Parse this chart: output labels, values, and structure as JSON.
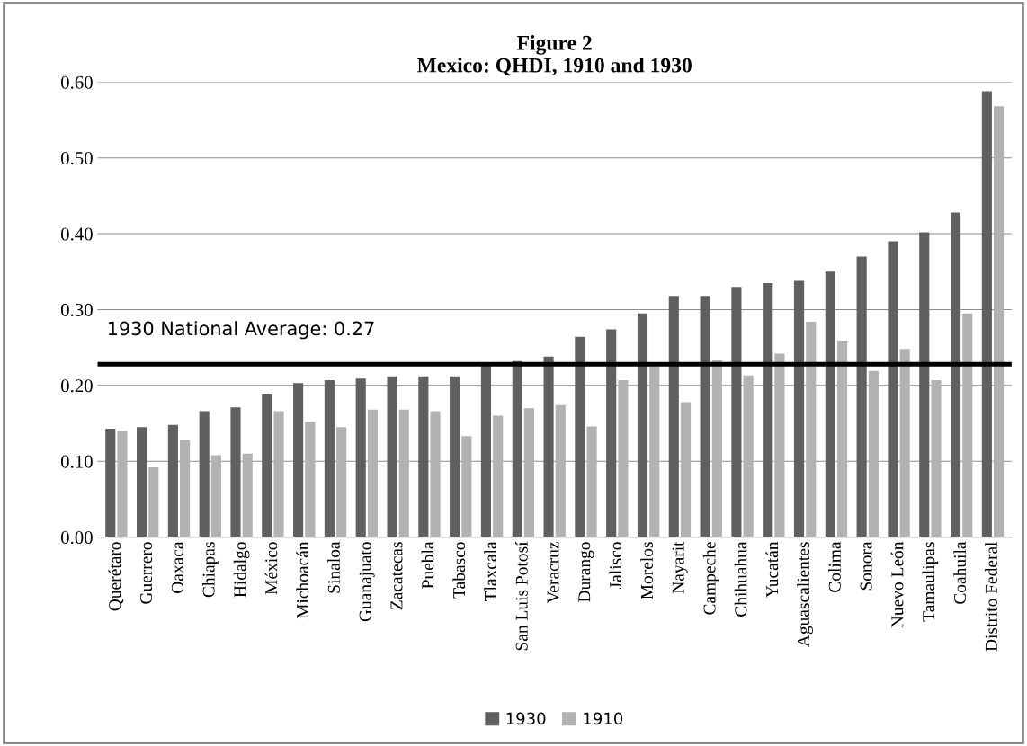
{
  "chart_data": {
    "type": "bar",
    "title": "Figure 2\nMexico: QHDI, 1910 and 1930",
    "categories": [
      "Querétaro",
      "Guerrero",
      "Oaxaca",
      "Chiapas",
      "Hidalgo",
      "México",
      "Michoacán",
      "Sinaloa",
      "Guanajuato",
      "Zacatecas",
      "Puebla",
      "Tabasco",
      "Tlaxcala",
      "San Luis Potosí",
      "Veracruz",
      "Durango",
      "Jalisco",
      "Morelos",
      "Nayarit",
      "Campeche",
      "Chihuahua",
      "Yucatán",
      "Aguascalientes",
      "Colima",
      "Sonora",
      "Nuevo León",
      "Tamaulipas",
      "Coahuila",
      "Distrito Federal"
    ],
    "series": [
      {
        "name": "1930",
        "color": "#606060",
        "values": [
          0.143,
          0.145,
          0.148,
          0.166,
          0.171,
          0.189,
          0.203,
          0.207,
          0.209,
          0.212,
          0.212,
          0.212,
          0.228,
          0.232,
          0.238,
          0.264,
          0.274,
          0.295,
          0.318,
          0.318,
          0.33,
          0.335,
          0.338,
          0.35,
          0.37,
          0.39,
          0.402,
          0.428,
          0.588
        ]
      },
      {
        "name": "1910",
        "color": "#b2b2b2",
        "values": [
          0.14,
          0.092,
          0.128,
          0.108,
          0.11,
          0.166,
          0.152,
          0.145,
          0.168,
          0.168,
          0.166,
          0.133,
          0.16,
          0.17,
          0.174,
          0.146,
          0.207,
          0.226,
          0.178,
          0.233,
          0.213,
          0.242,
          0.284,
          0.259,
          0.219,
          0.248,
          0.207,
          0.295,
          0.568
        ]
      }
    ],
    "ylim": [
      0,
      0.6
    ],
    "yticks": [
      {
        "value": 0,
        "label": "0.00"
      },
      {
        "value": 0.1,
        "label": "0.10"
      },
      {
        "value": 0.2,
        "label": "0.20"
      },
      {
        "value": 0.3,
        "label": "0.30"
      },
      {
        "value": 0.4,
        "label": "0.40"
      },
      {
        "value": 0.5,
        "label": "0.50"
      },
      {
        "value": 0.6,
        "label": "0.60"
      }
    ],
    "ref_lines": [
      {
        "axis": "y",
        "value": 0.228,
        "color": "#000000",
        "line_style": "solid"
      }
    ],
    "annotations": [
      "1930 National Average: 0.27"
    ],
    "grid": "y",
    "legend": "bottom"
  }
}
